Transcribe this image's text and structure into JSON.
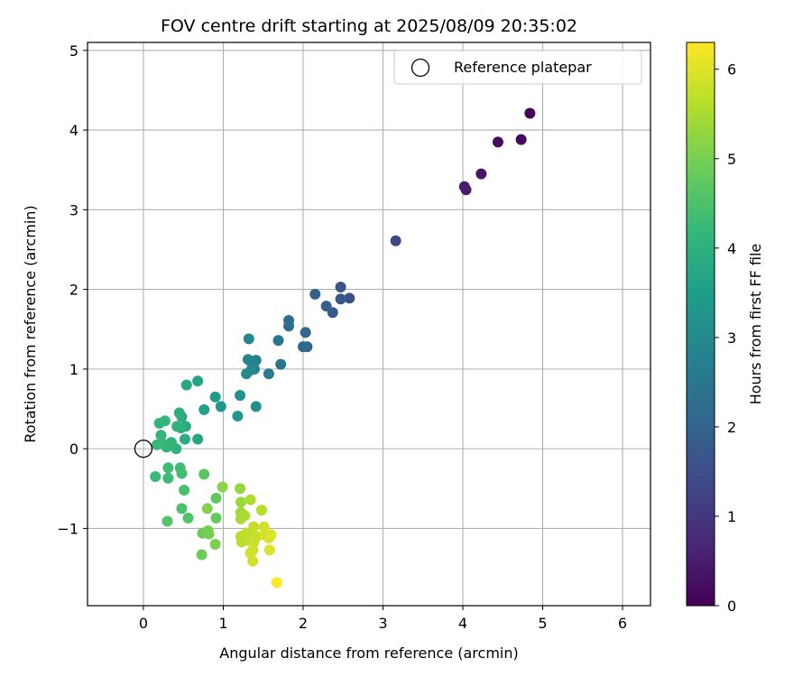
{
  "chart_data": {
    "type": "scatter",
    "title": "FOV centre drift starting at 2025/08/09 20:35:02",
    "xlabel": "Angular distance from reference (arcmin)",
    "ylabel": "Rotation from reference (arcmin)",
    "xlim": [
      -0.7,
      6.35
    ],
    "ylim": [
      -1.97,
      5.1
    ],
    "xticks": [
      0,
      1,
      2,
      3,
      4,
      5,
      6
    ],
    "yticks": [
      -1,
      0,
      1,
      2,
      3,
      4,
      5
    ],
    "ytick_labels": [
      "−1",
      "0",
      "1",
      "2",
      "3",
      "4",
      "5"
    ],
    "grid": true,
    "legend": {
      "position": "top-right",
      "entries": [
        "Reference platepar"
      ]
    },
    "reference_point": {
      "x": 0,
      "y": 0,
      "label": "Reference platepar"
    },
    "colorbar": {
      "label": "Hours from first FF file",
      "range": [
        0,
        6.3
      ],
      "ticks": [
        0,
        1,
        2,
        3,
        4,
        5,
        6
      ],
      "colormap": "viridis"
    },
    "points": [
      [
        4.84,
        4.21,
        0.05
      ],
      [
        4.73,
        3.88,
        0.12
      ],
      [
        4.44,
        3.85,
        0.18
      ],
      [
        4.23,
        3.45,
        0.35
      ],
      [
        4.02,
        3.29,
        0.45
      ],
      [
        4.04,
        3.25,
        0.5
      ],
      [
        3.16,
        2.61,
        1.3
      ],
      [
        2.58,
        1.89,
        1.55
      ],
      [
        2.47,
        2.03,
        1.6
      ],
      [
        2.47,
        1.88,
        1.7
      ],
      [
        2.37,
        1.71,
        1.75
      ],
      [
        2.29,
        1.79,
        1.85
      ],
      [
        2.15,
        1.94,
        1.95
      ],
      [
        2.05,
        1.28,
        2.0
      ],
      [
        2.03,
        1.46,
        2.05
      ],
      [
        2.0,
        1.28,
        2.1
      ],
      [
        1.82,
        1.61,
        2.2
      ],
      [
        1.82,
        1.54,
        2.25
      ],
      [
        1.72,
        1.06,
        2.4
      ],
      [
        1.69,
        1.36,
        2.45
      ],
      [
        1.57,
        0.94,
        2.6
      ],
      [
        1.41,
        1.11,
        2.7
      ],
      [
        1.39,
        1.0,
        2.75
      ],
      [
        1.36,
        1.07,
        2.8
      ],
      [
        1.31,
        1.12,
        2.85
      ],
      [
        1.32,
        1.38,
        2.9
      ],
      [
        1.29,
        0.94,
        2.95
      ],
      [
        1.35,
        0.99,
        3.0
      ],
      [
        1.41,
        0.53,
        3.1
      ],
      [
        1.21,
        0.67,
        3.2
      ],
      [
        1.18,
        0.41,
        3.3
      ],
      [
        0.97,
        0.53,
        3.35
      ],
      [
        0.9,
        0.65,
        3.45
      ],
      [
        0.76,
        0.49,
        3.55
      ],
      [
        0.68,
        0.85,
        3.65
      ],
      [
        0.68,
        0.12,
        3.7
      ],
      [
        0.54,
        0.8,
        3.75
      ],
      [
        0.53,
        0.28,
        3.8
      ],
      [
        0.52,
        0.12,
        3.85
      ],
      [
        0.48,
        0.4,
        3.9
      ],
      [
        0.45,
        0.45,
        3.95
      ],
      [
        0.47,
        0.26,
        4.0
      ],
      [
        0.42,
        0.28,
        4.02
      ],
      [
        0.41,
        0.0,
        4.05
      ],
      [
        0.35,
        0.08,
        4.08
      ],
      [
        0.29,
        0.02,
        4.1
      ],
      [
        0.27,
        0.35,
        4.12
      ],
      [
        0.22,
        0.17,
        4.15
      ],
      [
        0.2,
        0.32,
        4.18
      ],
      [
        0.23,
        0.08,
        4.2
      ],
      [
        0.17,
        0.05,
        4.22
      ],
      [
        0.15,
        -0.35,
        4.25
      ],
      [
        0.31,
        -0.37,
        4.3
      ],
      [
        0.31,
        -0.24,
        4.33
      ],
      [
        0.46,
        -0.24,
        4.36
      ],
      [
        0.48,
        -0.31,
        4.4
      ],
      [
        0.51,
        -0.52,
        4.45
      ],
      [
        0.48,
        -0.75,
        4.5
      ],
      [
        0.56,
        -0.87,
        4.55
      ],
      [
        0.3,
        -0.91,
        4.6
      ],
      [
        0.76,
        -0.32,
        4.65
      ],
      [
        0.91,
        -0.62,
        4.75
      ],
      [
        0.91,
        -0.87,
        4.8
      ],
      [
        0.74,
        -1.06,
        4.85
      ],
      [
        0.73,
        -1.33,
        4.9
      ],
      [
        0.81,
        -1.03,
        4.95
      ],
      [
        0.82,
        -1.07,
        5.0
      ],
      [
        0.9,
        -1.2,
        5.05
      ],
      [
        0.8,
        -0.75,
        5.1
      ],
      [
        0.99,
        -0.48,
        5.2
      ],
      [
        1.21,
        -0.5,
        5.3
      ],
      [
        1.22,
        -0.67,
        5.35
      ],
      [
        1.22,
        -0.8,
        5.4
      ],
      [
        1.22,
        -0.88,
        5.45
      ],
      [
        1.27,
        -0.84,
        5.5
      ],
      [
        1.34,
        -0.64,
        5.55
      ],
      [
        1.48,
        -0.77,
        5.6
      ],
      [
        1.22,
        -1.1,
        5.62
      ],
      [
        1.23,
        -1.17,
        5.65
      ],
      [
        1.29,
        -1.06,
        5.68
      ],
      [
        1.33,
        -1.08,
        5.7
      ],
      [
        1.3,
        -1.15,
        5.72
      ],
      [
        1.38,
        -0.98,
        5.75
      ],
      [
        1.42,
        -1.1,
        5.78
      ],
      [
        1.38,
        -1.18,
        5.8
      ],
      [
        1.37,
        -1.27,
        5.83
      ],
      [
        1.34,
        -1.31,
        5.86
      ],
      [
        1.37,
        -1.41,
        5.88
      ],
      [
        1.51,
        -0.98,
        5.9
      ],
      [
        1.52,
        -1.08,
        5.92
      ],
      [
        1.57,
        -1.12,
        5.95
      ],
      [
        1.6,
        -1.08,
        5.98
      ],
      [
        1.58,
        -1.27,
        6.0
      ],
      [
        1.67,
        -1.68,
        6.3
      ]
    ]
  }
}
